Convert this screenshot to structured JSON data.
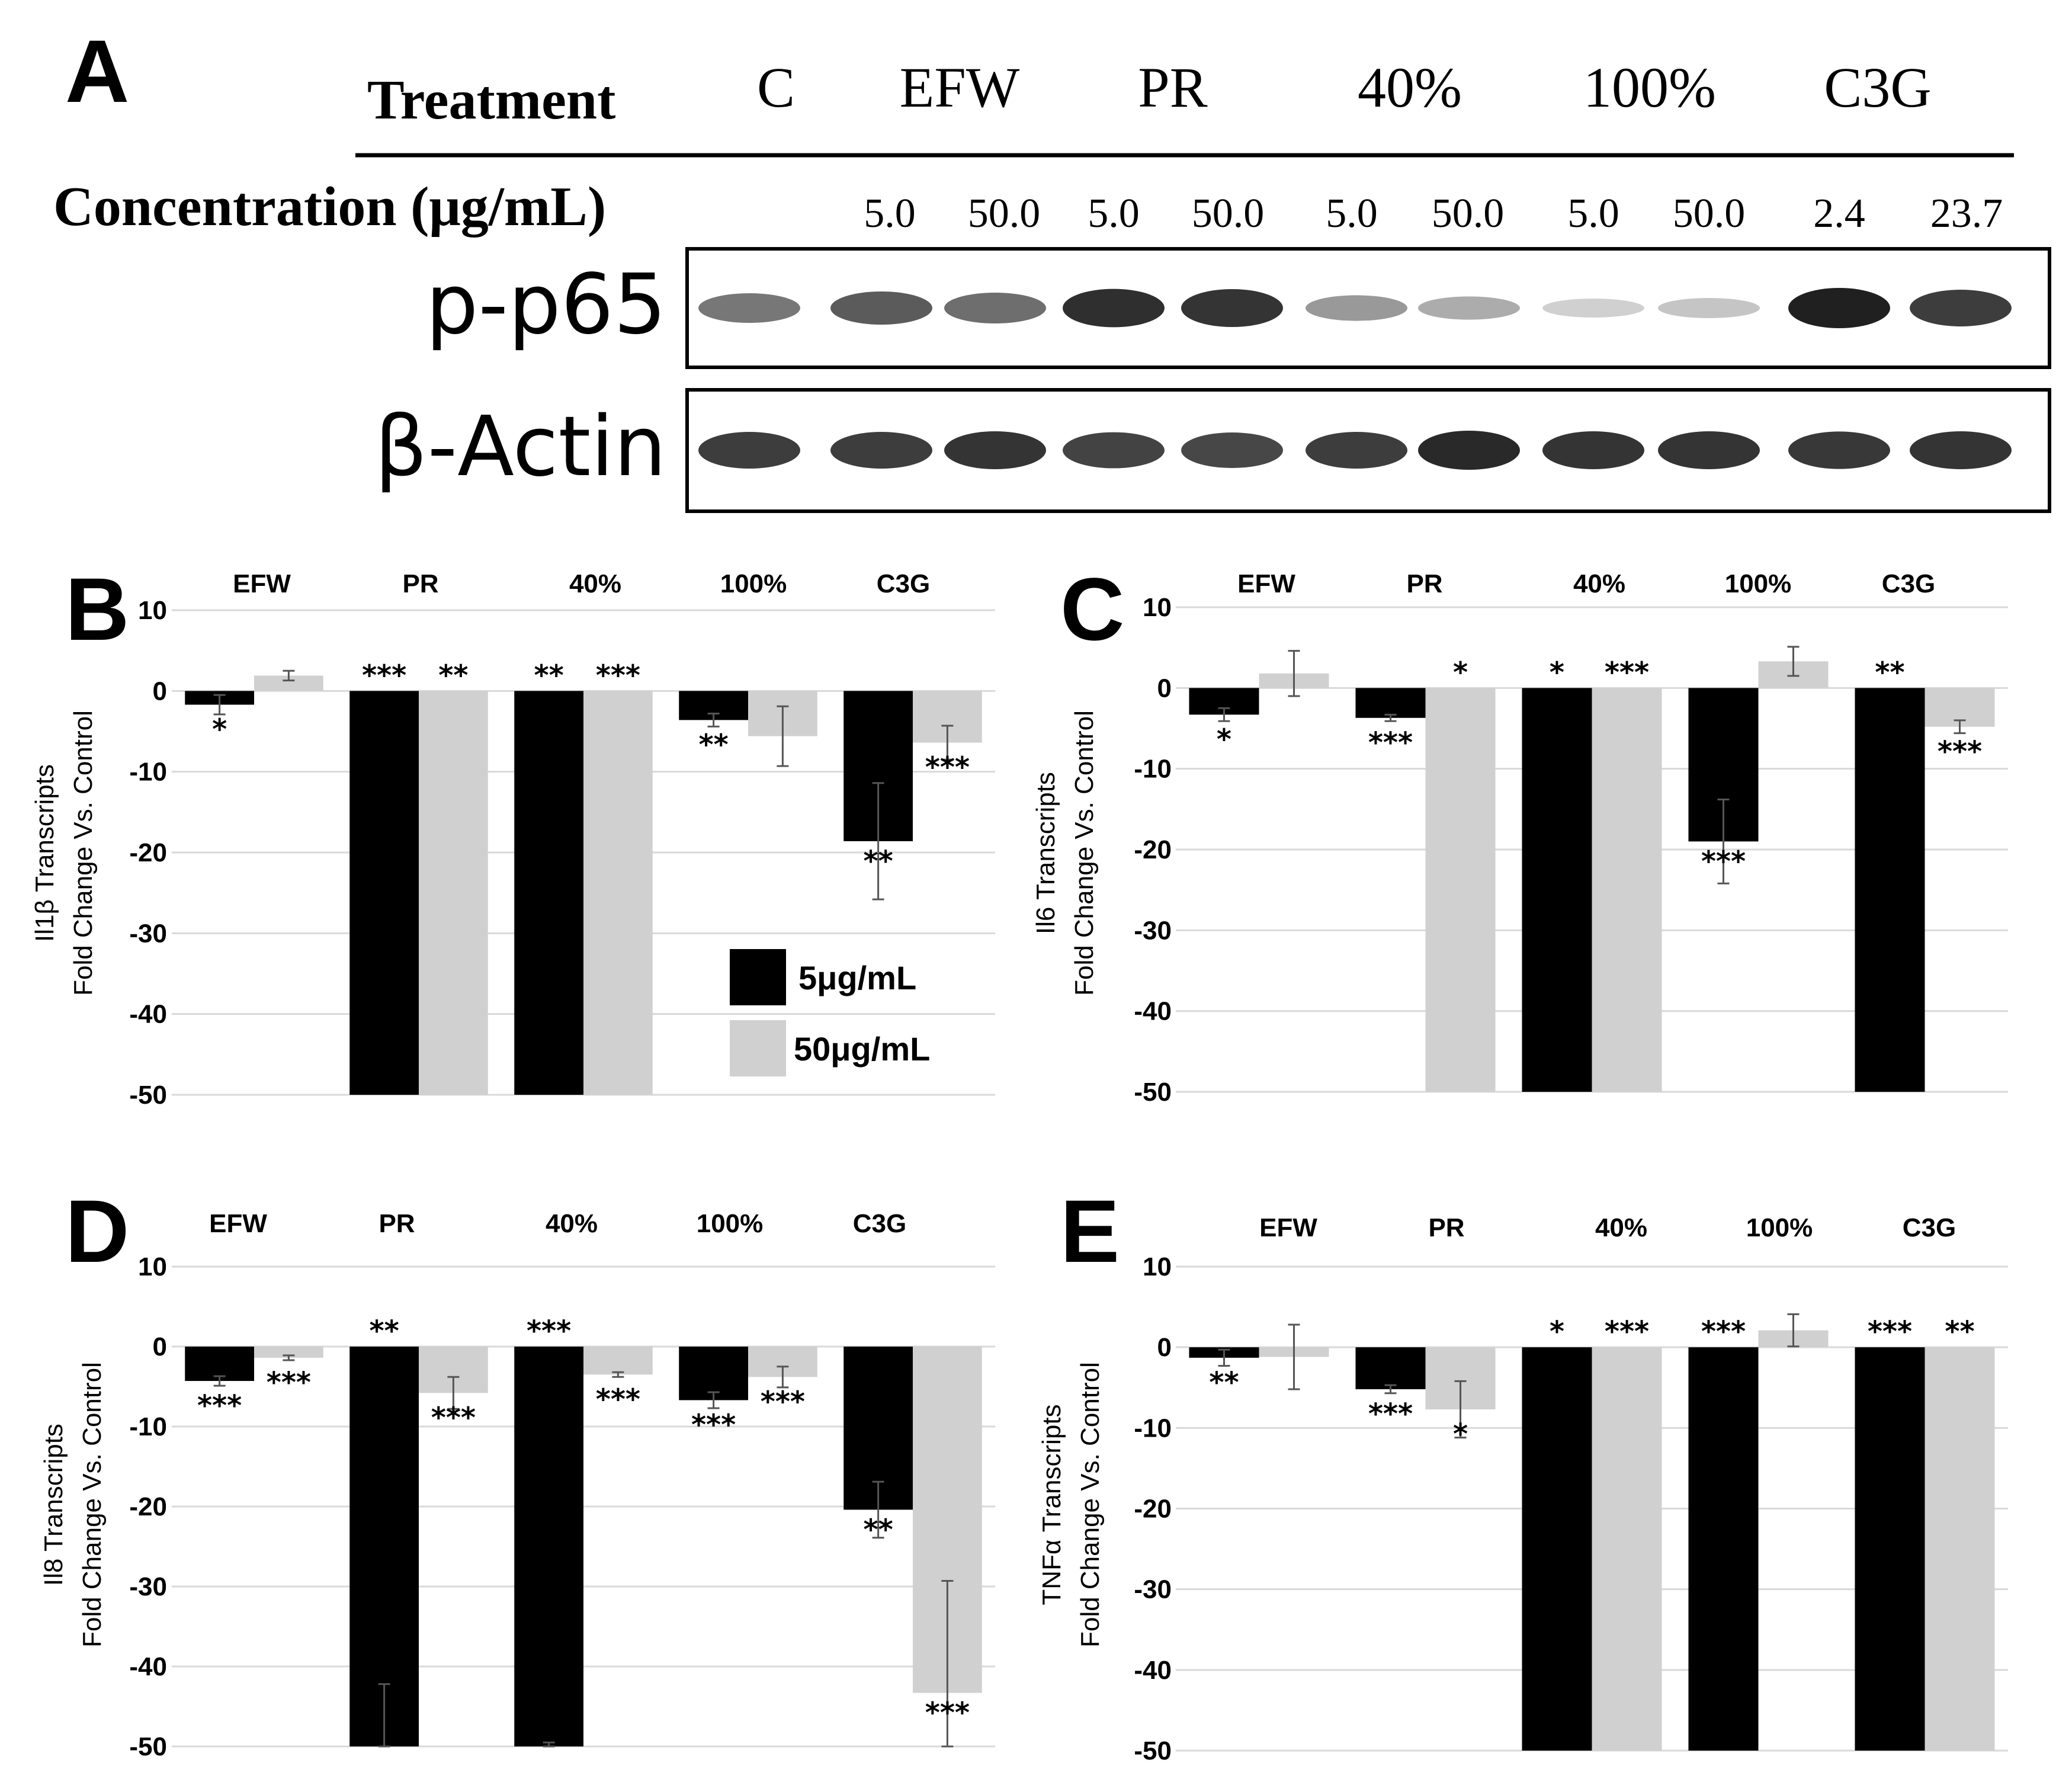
{
  "colors": {
    "dose5": "#000000",
    "dose50": "#d0d0d0",
    "grid": "#d9d9d9",
    "errorbar": "#555555"
  },
  "panelA": {
    "letter": "A",
    "treatment_label": "Treatment",
    "treatments": [
      "C",
      "EFW",
      "PR",
      "40%",
      "100%",
      "C3G"
    ],
    "concentration_label": "Concentration (μg/mL)",
    "concentrations": [
      "5.0",
      "50.0",
      "5.0",
      "50.0",
      "5.0",
      "50.0",
      "5.0",
      "50.0",
      "2.4",
      "23.7"
    ],
    "blots": [
      {
        "label": "p-p65",
        "lane_intensity": [
          0.55,
          0.7,
          0.6,
          0.92,
          0.9,
          0.38,
          0.28,
          0.1,
          0.15,
          1.0,
          0.85
        ]
      },
      {
        "label": "β-Actin",
        "lane_intensity": [
          0.85,
          0.85,
          0.9,
          0.82,
          0.8,
          0.85,
          0.95,
          0.9,
          0.9,
          0.88,
          0.9
        ]
      }
    ]
  },
  "legend": {
    "dose5_label": "5μg/mL",
    "dose50_label": "50μg/mL"
  },
  "chart_data": [
    {
      "letter": "B",
      "type": "bar",
      "categories": [
        "EFW",
        "PR",
        "40%",
        "100%",
        "C3G"
      ],
      "ylabel_line1": "Il1β Transcripts",
      "ylabel_line2": "Fold Change Vs. Control",
      "ylim": [
        -50,
        10
      ],
      "yticks": [
        10,
        0,
        -10,
        -20,
        -30,
        -40,
        -50
      ],
      "grid": true,
      "series": [
        {
          "name": "5μg/mL",
          "values": [
            -1.7,
            -50,
            -50,
            -3.6,
            -18.6
          ],
          "errors": [
            1.2,
            0,
            0,
            0.8,
            7.2
          ],
          "sig": [
            "*",
            "***",
            "**",
            "**",
            "**"
          ]
        },
        {
          "name": "50μg/mL",
          "values": [
            1.9,
            -50,
            -50,
            -5.6,
            -6.4
          ],
          "errors": [
            0.6,
            0,
            0,
            3.7,
            2.1
          ],
          "sig": [
            "",
            "**",
            "***",
            "",
            "***"
          ]
        }
      ]
    },
    {
      "letter": "C",
      "type": "bar",
      "categories": [
        "EFW",
        "PR",
        "40%",
        "100%",
        "C3G"
      ],
      "ylabel_line1": "Il6 Transcripts",
      "ylabel_line2": "Fold Change Vs. Control",
      "ylim": [
        -50,
        10
      ],
      "yticks": [
        10,
        0,
        -10,
        -20,
        -30,
        -40,
        -50
      ],
      "grid": true,
      "series": [
        {
          "name": "5μg/mL",
          "values": [
            -3.3,
            -3.7,
            -50,
            -19,
            -50
          ],
          "errors": [
            0.8,
            0.4,
            0,
            5.2,
            0
          ],
          "sig": [
            "*",
            "***",
            "*",
            "***",
            "**"
          ]
        },
        {
          "name": "50μg/mL",
          "values": [
            1.8,
            -50,
            -50,
            3.3,
            -4.8
          ],
          "errors": [
            2.8,
            0,
            0,
            1.8,
            0.8
          ],
          "sig": [
            "",
            "*",
            "***",
            "",
            "***"
          ]
        }
      ]
    },
    {
      "letter": "D",
      "type": "bar",
      "categories": [
        "EFW",
        "PR",
        "40%",
        "100%",
        "C3G"
      ],
      "ylabel_line1": "Il8 Transcripts",
      "ylabel_line2": "Fold Change Vs. Control",
      "ylim": [
        -50,
        10
      ],
      "yticks": [
        10,
        0,
        -10,
        -20,
        -30,
        -40,
        -50
      ],
      "grid": true,
      "series": [
        {
          "name": "5μg/mL",
          "values": [
            -4.3,
            -50,
            -50,
            -6.7,
            -20.4
          ],
          "errors": [
            0.6,
            7.8,
            0.5,
            1.0,
            3.5
          ],
          "sig": [
            "***",
            "**",
            "***",
            "***",
            "**"
          ]
        },
        {
          "name": "50μg/mL",
          "values": [
            -1.4,
            -5.8,
            -3.5,
            -3.8,
            -43.3
          ],
          "errors": [
            0.3,
            2.0,
            0.3,
            1.3,
            14
          ],
          "sig": [
            "***",
            "***",
            "***",
            "***",
            "***"
          ]
        }
      ]
    },
    {
      "letter": "E",
      "type": "bar",
      "categories": [
        "EFW",
        "PR",
        "40%",
        "100%",
        "C3G"
      ],
      "ylabel_line1": "TNFα Transcripts",
      "ylabel_line2": "Fold Change Vs. Control",
      "ylim": [
        -50,
        10
      ],
      "yticks": [
        10,
        0,
        -10,
        -20,
        -30,
        -40,
        -50
      ],
      "grid": true,
      "series": [
        {
          "name": "5μg/mL",
          "values": [
            -1.3,
            -5.2,
            -50,
            -50,
            -50
          ],
          "errors": [
            1.0,
            0.5,
            0,
            0,
            0
          ],
          "sig": [
            "**",
            "***",
            "*",
            "***",
            "***"
          ]
        },
        {
          "name": "50μg/mL",
          "values": [
            -1.2,
            -7.7,
            -50,
            2.1,
            -50
          ],
          "errors": [
            4.0,
            3.5,
            0,
            2.0,
            0
          ],
          "sig": [
            "",
            "*",
            "***",
            "",
            "**"
          ]
        }
      ]
    }
  ]
}
